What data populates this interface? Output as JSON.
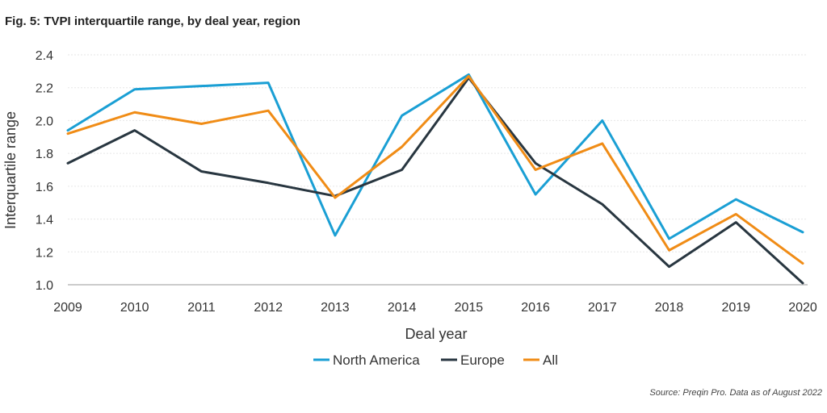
{
  "figure": {
    "title": "Fig. 5: TVPI interquartile range, by deal year, region",
    "source": "Source: Preqin Pro. Data as of August 2022"
  },
  "colors": {
    "north_america": "#1a9fd4",
    "europe": "#283640",
    "all": "#f08c16",
    "grid": "#e6e6e6",
    "baseline": "#cccccc"
  },
  "chart_data": {
    "type": "line",
    "title": "Fig. 5: TVPI interquartile range, by deal year, region",
    "xlabel": "Deal year",
    "ylabel": "Interquartile range",
    "x": [
      "2009",
      "2010",
      "2011",
      "2012",
      "2013",
      "2014",
      "2015",
      "2016",
      "2017",
      "2018",
      "2019",
      "2020"
    ],
    "ylim": [
      1.0,
      2.4
    ],
    "yticks": [
      "1.0",
      "1.2",
      "1.4",
      "1.6",
      "1.8",
      "2.0",
      "2.2",
      "2.4"
    ],
    "grid": true,
    "legend_position": "bottom",
    "series": [
      {
        "name": "North America",
        "color": "#1a9fd4",
        "values": [
          1.94,
          2.19,
          2.21,
          2.23,
          1.3,
          2.03,
          2.28,
          1.55,
          2.0,
          1.28,
          1.52,
          1.32
        ]
      },
      {
        "name": "Europe",
        "color": "#283640",
        "values": [
          1.74,
          1.94,
          1.69,
          1.62,
          1.54,
          1.7,
          2.26,
          1.74,
          1.49,
          1.11,
          1.38,
          1.01
        ]
      },
      {
        "name": "All",
        "color": "#f08c16",
        "values": [
          1.92,
          2.05,
          1.98,
          2.06,
          1.53,
          1.84,
          2.27,
          1.7,
          1.86,
          1.21,
          1.43,
          1.13
        ]
      }
    ]
  }
}
